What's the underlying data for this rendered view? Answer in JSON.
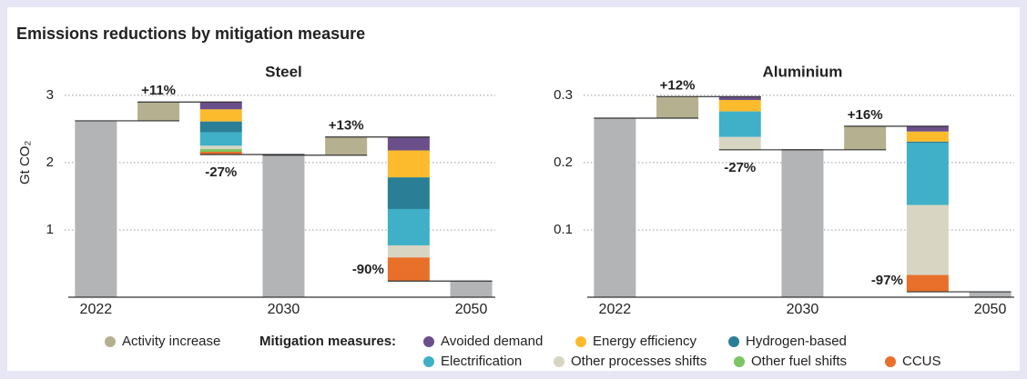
{
  "title": "Emissions reductions by mitigation measure",
  "legend_title": "Mitigation measures:",
  "chart_data": [
    {
      "type": "waterfall",
      "title": "Steel",
      "ylabel": "Gt CO₂",
      "categories": [
        "2022",
        null,
        null,
        "2030",
        null,
        null,
        "2050"
      ],
      "totals": [
        2.62,
        null,
        null,
        2.11,
        null,
        null,
        0.24
      ],
      "total_color": "#b3b4b6",
      "series": [
        {
          "name": "Activity increase",
          "color": "#b5b08f",
          "values": [
            null,
            0.28,
            null,
            null,
            0.27,
            null,
            null
          ]
        },
        {
          "name": "Avoided demand",
          "color": "#6a4f8a",
          "values": [
            null,
            null,
            -0.11,
            null,
            null,
            -0.2,
            null
          ]
        },
        {
          "name": "Energy efficiency",
          "color": "#fbbb2c",
          "values": [
            null,
            null,
            -0.18,
            null,
            null,
            -0.4,
            null
          ]
        },
        {
          "name": "Hydrogen-based",
          "color": "#2a7f96",
          "values": [
            null,
            null,
            -0.16,
            null,
            null,
            -0.47,
            null
          ]
        },
        {
          "name": "Electrification",
          "color": "#3fb0c8",
          "values": [
            null,
            null,
            -0.2,
            null,
            null,
            -0.54,
            null
          ]
        },
        {
          "name": "Other processes shifts",
          "color": "#d8d5c3",
          "values": [
            null,
            null,
            -0.05,
            null,
            null,
            -0.18,
            null
          ]
        },
        {
          "name": "Other fuel shifts",
          "color": "#7dc462",
          "values": [
            null,
            null,
            -0.04,
            null,
            null,
            0,
            null
          ]
        },
        {
          "name": "CCUS",
          "color": "#e8702a",
          "values": [
            null,
            null,
            -0.04,
            null,
            null,
            -0.35,
            null
          ]
        }
      ],
      "change_labels": [
        null,
        "+11%",
        "-27%",
        null,
        "+13%",
        "-90%",
        null
      ],
      "ylim": [
        0,
        3.2
      ],
      "yticks": [
        1,
        2,
        3
      ],
      "grid": true
    },
    {
      "type": "waterfall",
      "title": "Aluminium",
      "categories": [
        "2022",
        null,
        null,
        "2030",
        null,
        null,
        "2050"
      ],
      "totals": [
        0.266,
        null,
        null,
        0.219,
        null,
        null,
        0.008
      ],
      "total_color": "#b3b4b6",
      "series": [
        {
          "name": "Activity increase",
          "color": "#b5b08f",
          "values": [
            null,
            0.032,
            null,
            null,
            0.035,
            null,
            null
          ]
        },
        {
          "name": "Avoided demand",
          "color": "#6a4f8a",
          "values": [
            null,
            null,
            -0.005,
            null,
            null,
            -0.008,
            null
          ]
        },
        {
          "name": "Energy efficiency",
          "color": "#fbbb2c",
          "values": [
            null,
            null,
            -0.017,
            null,
            null,
            -0.015,
            null
          ]
        },
        {
          "name": "Hydrogen-based",
          "color": "#2a7f96",
          "values": [
            null,
            null,
            0,
            null,
            null,
            -0.002,
            null
          ]
        },
        {
          "name": "Electrification",
          "color": "#3fb0c8",
          "values": [
            null,
            null,
            -0.038,
            null,
            null,
            -0.092,
            null
          ]
        },
        {
          "name": "Other processes shifts",
          "color": "#d8d5c3",
          "values": [
            null,
            null,
            -0.019,
            null,
            null,
            -0.104,
            null
          ]
        },
        {
          "name": "Other fuel shifts",
          "color": "#7dc462",
          "values": [
            null,
            null,
            0,
            null,
            null,
            0,
            null
          ]
        },
        {
          "name": "CCUS",
          "color": "#e8702a",
          "values": [
            null,
            null,
            0,
            null,
            null,
            -0.025,
            null
          ]
        }
      ],
      "change_labels": [
        null,
        "+12%",
        "-27%",
        null,
        "+16%",
        "-97%",
        null
      ],
      "ylim": [
        0,
        0.32
      ],
      "yticks": [
        0.1,
        0.2,
        0.3
      ],
      "grid": true
    }
  ]
}
